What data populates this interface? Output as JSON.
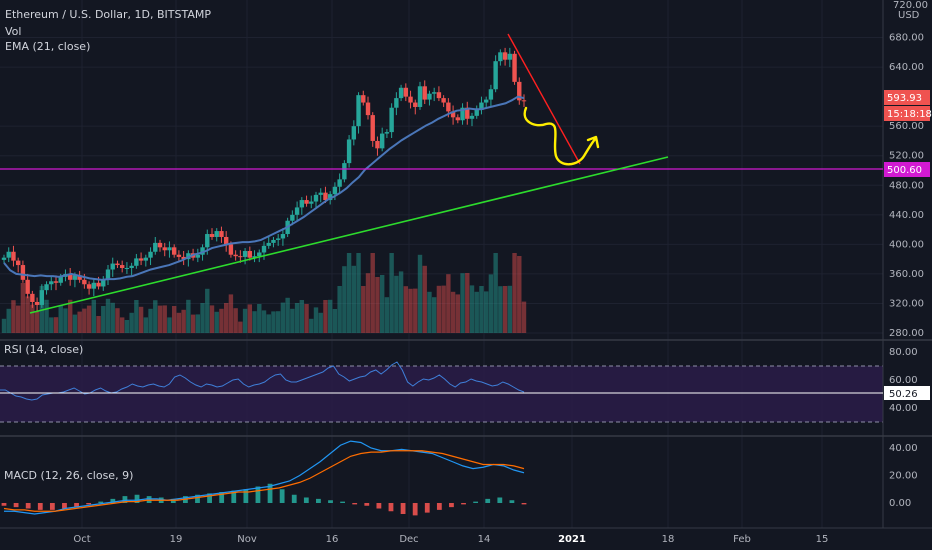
{
  "header": {
    "title": "Ethereum / U.S. Dollar, 1D, BITSTAMP",
    "vol_label": "Vol",
    "ema_label": "EMA (21, close)",
    "currency": "USD",
    "top_tick": "720.00"
  },
  "tags": {
    "price": "593.93",
    "countdown": "15:18:18",
    "support": "500.60",
    "rsi": "50.26"
  },
  "rsi_pane": {
    "label": "RSI (14, close)",
    "ticks": [
      "80.00",
      "60.00",
      "40.00"
    ]
  },
  "macd_pane": {
    "label": "MACD (12, 26, close, 9)",
    "ticks": [
      "40.00",
      "20.00",
      "0.00"
    ]
  },
  "colors": {
    "background": "#131722",
    "up": "#26a69a",
    "down": "#ef5350",
    "ema": "#4a76b8",
    "trendline": "#2ddb2d",
    "downtrend": "#ff2020",
    "support": "#d21ad2",
    "drawing": "#ffee00",
    "rsi_line": "#7e57c2",
    "macd_line": "#2196f3",
    "signal_line": "#ff6d00"
  },
  "chart_data": [
    {
      "type": "candlestick",
      "title": "Ethereum / U.S. Dollar, 1D, BITSTAMP",
      "ylabel": "USD",
      "ylim": [
        270,
        720
      ],
      "y_ticks": [
        280,
        320,
        360,
        400,
        440,
        480,
        520,
        560,
        640,
        680
      ],
      "x_ticks": [
        "Oct",
        "19",
        "Nov",
        "16",
        "Dec",
        "14",
        "2021",
        "18",
        "Feb",
        "15"
      ],
      "ohlc_close_path": [
        382,
        390,
        378,
        372,
        352,
        333,
        322,
        318,
        338,
        346,
        350,
        348,
        356,
        360,
        352,
        358,
        352,
        346,
        340,
        348,
        343,
        353,
        366,
        374,
        372,
        368,
        368,
        371,
        381,
        378,
        382,
        390,
        402,
        396,
        392,
        396,
        386,
        383,
        380,
        388,
        382,
        386,
        396,
        414,
        410,
        418,
        410,
        400,
        386,
        384,
        383,
        391,
        382,
        384,
        389,
        398,
        402,
        406,
        408,
        414,
        432,
        440,
        450,
        460,
        455,
        458,
        467,
        470,
        460,
        468,
        478,
        488,
        510,
        542,
        560,
        602,
        592,
        575,
        540,
        530,
        550,
        552,
        585,
        598,
        612,
        600,
        592,
        586,
        614,
        596,
        604,
        606,
        598,
        592,
        580,
        572,
        568,
        585,
        570,
        574,
        582,
        592,
        596,
        610,
        648,
        660,
        650,
        658,
        620,
        595,
        594
      ],
      "ema_21": [
        375,
        365,
        360,
        359,
        358,
        357,
        358,
        357,
        357,
        356,
        358,
        360,
        358,
        356,
        354,
        353,
        352,
        353,
        353,
        354,
        356,
        357,
        360,
        363,
        366,
        368,
        370,
        372,
        375,
        378,
        382,
        386,
        388,
        391,
        395,
        397,
        399,
        401,
        402,
        403,
        403,
        404,
        406,
        410,
        414,
        418,
        422,
        427,
        432,
        437,
        443,
        449,
        455,
        461,
        465,
        470,
        476,
        484,
        491,
        501,
        508,
        515,
        522,
        529,
        535,
        541,
        546,
        551,
        556,
        561,
        565,
        570,
        574,
        578,
        581,
        582,
        584,
        583,
        583,
        585,
        587,
        589,
        591,
        595,
        600,
        598
      ],
      "annotations": [
        "ascending trendline",
        "support 500.60",
        "downtrend line from top",
        "hand-drawn forecast"
      ]
    },
    {
      "type": "line",
      "title": "RSI (14, close)",
      "ylim": [
        20,
        90
      ],
      "values": [
        52,
        52,
        49,
        46,
        45,
        43,
        42,
        43,
        47,
        48,
        49,
        49,
        50,
        52,
        54,
        51,
        48,
        49,
        52,
        54,
        51,
        49,
        50,
        53,
        55,
        58,
        56,
        55,
        57,
        58,
        56,
        55,
        58,
        65,
        67,
        64,
        60,
        57,
        55,
        58,
        57,
        55,
        56,
        59,
        62,
        63,
        58,
        55,
        57,
        58,
        60,
        64,
        67,
        68,
        62,
        60,
        60,
        62,
        64,
        66,
        68,
        70,
        74,
        76,
        68,
        65,
        61,
        63,
        65,
        66,
        70,
        72,
        68,
        72,
        77,
        80,
        72,
        60,
        56,
        60,
        63,
        62,
        64,
        67,
        63,
        58,
        55,
        59,
        60,
        63,
        61,
        60,
        58,
        56,
        57,
        60,
        58,
        55,
        52,
        50
      ]
    },
    {
      "type": "bar-line",
      "title": "MACD (12, 26, close, 9)",
      "ylim": [
        -15,
        50
      ],
      "macd": [
        -6,
        -6,
        -7,
        -8,
        -7,
        -6,
        -4,
        -3,
        -2,
        -1,
        0,
        1,
        2,
        2,
        3,
        3,
        2,
        3,
        4,
        5,
        6,
        7,
        8,
        9,
        10,
        11,
        12,
        14,
        16,
        20,
        25,
        30,
        36,
        42,
        45,
        44,
        40,
        38,
        38,
        39,
        38,
        37,
        36,
        33,
        30,
        27,
        25,
        26,
        28,
        27,
        24,
        22
      ],
      "signal": [
        -4,
        -5,
        -5,
        -6,
        -6,
        -6,
        -5,
        -4,
        -3,
        -2,
        -1,
        0,
        1,
        1,
        2,
        2,
        2,
        2,
        3,
        4,
        5,
        6,
        7,
        8,
        8,
        9,
        10,
        11,
        13,
        15,
        18,
        22,
        26,
        30,
        34,
        36,
        37,
        37,
        38,
        38,
        38,
        38,
        37,
        36,
        34,
        32,
        30,
        28,
        28,
        28,
        27,
        25
      ],
      "histogram": [
        -2,
        -3,
        -4,
        -5,
        -5,
        -4,
        -3,
        -1,
        1,
        3,
        5,
        6,
        5,
        4,
        3,
        5,
        6,
        7,
        8,
        9,
        10,
        12,
        14,
        10,
        6,
        4,
        3,
        2,
        1,
        -1,
        -2,
        -4,
        -6,
        -8,
        -9,
        -7,
        -5,
        -3,
        -1,
        1,
        3,
        4,
        2,
        -1
      ]
    }
  ]
}
